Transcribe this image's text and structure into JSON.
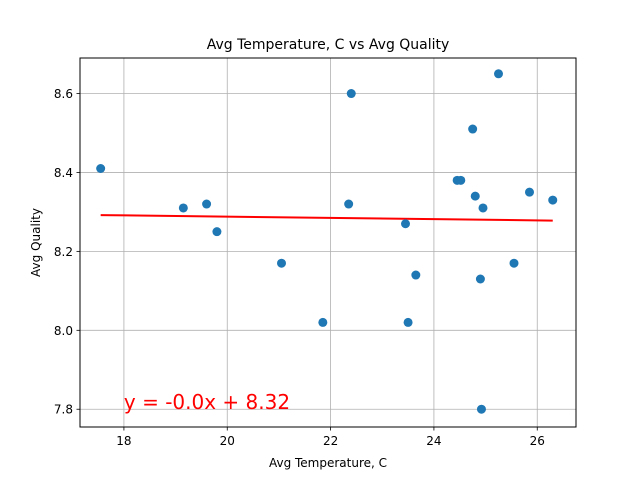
{
  "chart_data": {
    "type": "scatter",
    "title": "Avg Temperature, C vs Avg Quality",
    "xlabel": "Avg Temperature, C",
    "ylabel": "Avg Quality",
    "xlim": [
      17.15,
      26.75
    ],
    "ylim": [
      7.755,
      8.69
    ],
    "xticks": [
      18,
      20,
      22,
      24,
      26
    ],
    "yticks": [
      7.8,
      8.0,
      8.2,
      8.4,
      8.6
    ],
    "grid": true,
    "point_color": "#1f77b4",
    "points": [
      {
        "x": 17.55,
        "y": 8.41
      },
      {
        "x": 19.15,
        "y": 8.31
      },
      {
        "x": 19.6,
        "y": 8.32
      },
      {
        "x": 19.8,
        "y": 8.25
      },
      {
        "x": 21.05,
        "y": 8.17
      },
      {
        "x": 21.85,
        "y": 8.02
      },
      {
        "x": 22.35,
        "y": 8.32
      },
      {
        "x": 22.4,
        "y": 8.6
      },
      {
        "x": 23.45,
        "y": 8.27
      },
      {
        "x": 23.5,
        "y": 8.02
      },
      {
        "x": 23.65,
        "y": 8.14
      },
      {
        "x": 24.45,
        "y": 8.38
      },
      {
        "x": 24.52,
        "y": 8.38
      },
      {
        "x": 24.75,
        "y": 8.51
      },
      {
        "x": 24.8,
        "y": 8.34
      },
      {
        "x": 24.9,
        "y": 8.13
      },
      {
        "x": 24.92,
        "y": 7.8
      },
      {
        "x": 24.95,
        "y": 8.31
      },
      {
        "x": 25.25,
        "y": 8.65
      },
      {
        "x": 25.55,
        "y": 8.17
      },
      {
        "x": 25.85,
        "y": 8.35
      },
      {
        "x": 26.3,
        "y": 8.33
      }
    ],
    "trendline": {
      "color": "#ff0000",
      "x_start": 17.55,
      "x_end": 26.3,
      "y_start": 8.292,
      "y_end": 8.278
    },
    "annotation": {
      "text": "y = -0.0x + 8.32",
      "color": "#ff0000",
      "x": 18.0,
      "y": 7.8
    }
  }
}
